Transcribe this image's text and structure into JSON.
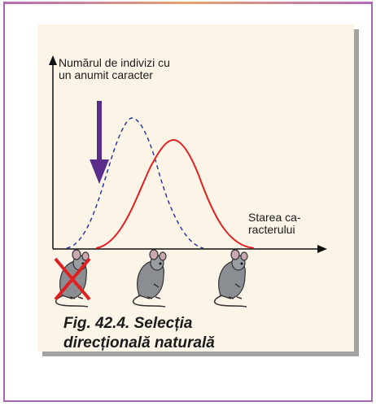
{
  "axis_label_y": [
    "Numărul de indivizi cu",
    "un anumit caracter"
  ],
  "axis_label_x": [
    "Starea ca-",
    "racterului"
  ],
  "caption": [
    "Fig. 42.4. Selecția",
    "direcțională naturală"
  ]
}
